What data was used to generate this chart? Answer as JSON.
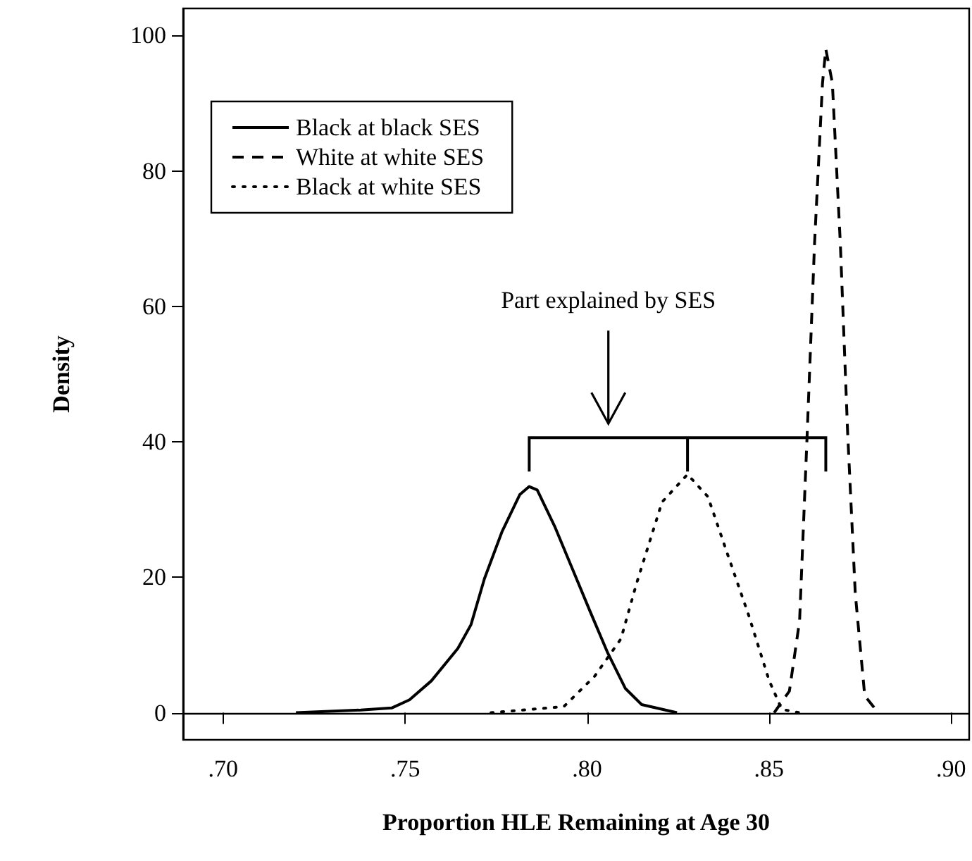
{
  "chart_data": {
    "type": "line",
    "xlabel": "Proportion HLE Remaining at Age 30",
    "ylabel": "Density",
    "xlim": [
      0.689,
      0.905
    ],
    "ylim": [
      -4,
      104
    ],
    "xticks": [
      {
        "value": 0.7,
        "label": ".70"
      },
      {
        "value": 0.75,
        "label": ".75"
      },
      {
        "value": 0.8,
        "label": ".80"
      },
      {
        "value": 0.85,
        "label": ".85"
      },
      {
        "value": 0.9,
        "label": ".90"
      }
    ],
    "yticks": [
      0,
      20,
      40,
      60,
      80,
      100
    ],
    "grid": false,
    "legend": "top left",
    "marker": "none",
    "ref_lines": [
      {
        "axis": "y",
        "value": 0,
        "color": "#000000"
      }
    ],
    "annotations": [
      "Part explained by SES"
    ],
    "series": [
      {
        "name": "Black at black SES",
        "color": "#000000",
        "line_style": "solid",
        "x": [
          0.72,
          0.7378,
          0.7463,
          0.7512,
          0.7572,
          0.7645,
          0.7681,
          0.7718,
          0.7766,
          0.7815,
          0.7841,
          0.7863,
          0.7912,
          0.796,
          0.8008,
          0.8057,
          0.8105,
          0.815,
          0.8247
        ],
        "values": [
          0,
          0.4,
          0.7,
          1.9,
          4.7,
          9.5,
          13,
          19.8,
          26.7,
          32.2,
          33.4,
          32.9,
          27.4,
          21.2,
          15.0,
          8.8,
          3.6,
          1.2,
          0
        ]
      },
      {
        "name": "White at white SES",
        "color": "#000000",
        "line_style": "dashed",
        "x": [
          0.8514,
          0.8556,
          0.8584,
          0.8605,
          0.8625,
          0.8647,
          0.8656,
          0.8674,
          0.8696,
          0.8716,
          0.8737,
          0.8763,
          0.88
        ],
        "values": [
          0,
          3.2,
          13.6,
          41.4,
          69.2,
          93,
          98,
          93,
          69.2,
          41.4,
          17.6,
          2.5,
          0
        ]
      },
      {
        "name": "Black at white SES",
        "color": "#000000",
        "line_style": "dotted",
        "x": [
          0.7736,
          0.7936,
          0.8021,
          0.8093,
          0.8136,
          0.8206,
          0.8276,
          0.8332,
          0.8388,
          0.8444,
          0.85,
          0.8535,
          0.8584
        ],
        "values": [
          0,
          0.9,
          5.4,
          10.9,
          19.1,
          31.1,
          35.2,
          31.9,
          23.1,
          14.4,
          4.8,
          0.5,
          0
        ]
      }
    ]
  }
}
